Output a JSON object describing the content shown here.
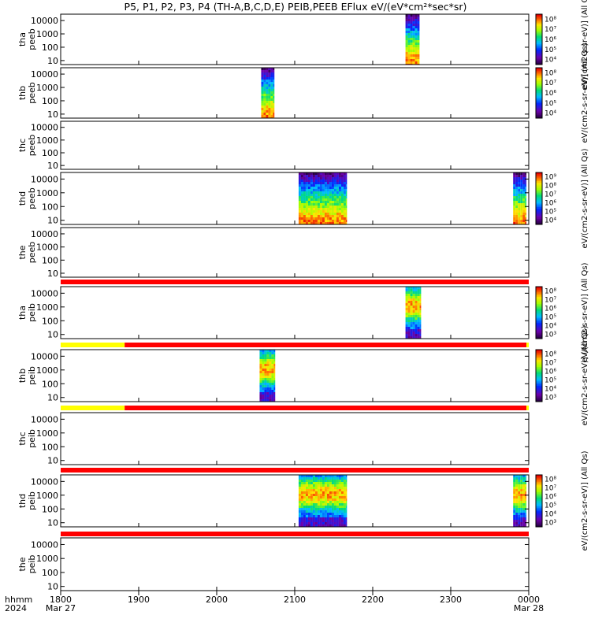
{
  "title": "P5, P1, P2, P3, P4 (TH-A,B,C,D,E) PEIB,PEEB EFlux eV/(eV*cm²*sec*sr)",
  "colors": {
    "flag_red": "#ff0000",
    "flag_yellow": "#ffff00"
  },
  "time_axis": {
    "corner_top": "hhmm",
    "corner_bottom": "2024",
    "ticks": [
      {
        "label": "1800",
        "sub": "Mar 27",
        "hour": 18
      },
      {
        "label": "1900",
        "sub": "",
        "hour": 19
      },
      {
        "label": "2000",
        "sub": "",
        "hour": 20
      },
      {
        "label": "2100",
        "sub": "",
        "hour": 21
      },
      {
        "label": "2200",
        "sub": "",
        "hour": 22
      },
      {
        "label": "2300",
        "sub": "",
        "hour": 23
      },
      {
        "label": "0000",
        "sub": "Mar 28",
        "hour": 24
      }
    ]
  },
  "chart_data": {
    "type": "heatmap",
    "x_range_hours": [
      18,
      24
    ],
    "y_scale": "log",
    "y_ticks": [
      "10",
      "100",
      "1000",
      "10000"
    ],
    "panels": [
      {
        "label1": "tha",
        "label2": "peeb",
        "ylim": [
          5,
          30000
        ],
        "blocks": [
          {
            "x0": 22.42,
            "x1": 22.6,
            "pattern": "electron"
          }
        ],
        "colorbar": {
          "ticks": [
            "10⁴",
            "10⁵",
            "10⁶",
            "10⁷",
            "10⁸"
          ],
          "label": "eV/(cm2-s-sr-eV)] (All Qs)"
        }
      },
      {
        "label1": "thb",
        "label2": "peeb",
        "ylim": [
          5,
          30000
        ],
        "blocks": [
          {
            "x0": 20.57,
            "x1": 20.74,
            "pattern": "electron"
          }
        ],
        "colorbar": {
          "ticks": [
            "10⁴",
            "10⁵",
            "10⁶",
            "10⁷",
            "10⁸"
          ],
          "label": "eV/(cm2-s-sr-eV)] (All Qs)"
        }
      },
      {
        "label1": "thc",
        "label2": "peeb",
        "ylim": [
          5,
          30000
        ],
        "blocks": [],
        "colorbar": null
      },
      {
        "label1": "thd",
        "label2": "peeb",
        "ylim": [
          5,
          30000
        ],
        "blocks": [
          {
            "x0": 21.05,
            "x1": 21.67,
            "pattern": "electron"
          },
          {
            "x0": 23.8,
            "x1": 23.97,
            "pattern": "electron"
          }
        ],
        "colorbar": {
          "ticks": [
            "10⁴",
            "10⁵",
            "10⁶",
            "10⁷",
            "10⁸",
            "10⁹"
          ],
          "label": "eV/(cm2-s-sr-eV)] (All Qs)"
        }
      },
      {
        "label1": "the",
        "label2": "peeb",
        "ylim": [
          5,
          30000
        ],
        "blocks": [],
        "colorbar": null
      },
      {
        "label1": "tha",
        "label2": "peib",
        "ylim": [
          5,
          30000
        ],
        "blocks": [
          {
            "x0": 22.42,
            "x1": 22.62,
            "pattern": "ion"
          }
        ],
        "colorbar": {
          "ticks": [
            "10³",
            "10⁴",
            "10⁵",
            "10⁶",
            "10⁷",
            "10⁸"
          ],
          "label": "eV/(cm2-s-sr-eV)] (All Qs)"
        }
      },
      {
        "label1": "thb",
        "label2": "peib",
        "ylim": [
          5,
          30000
        ],
        "blocks": [
          {
            "x0": 20.55,
            "x1": 20.75,
            "pattern": "ion"
          }
        ],
        "colorbar": {
          "ticks": [
            "10³",
            "10⁴",
            "10⁵",
            "10⁶",
            "10⁷",
            "10⁸"
          ],
          "label": "eV/(cm2-s-sr-eV)] (All Qs)"
        }
      },
      {
        "label1": "thc",
        "label2": "peib",
        "ylim": [
          5,
          30000
        ],
        "blocks": [],
        "colorbar": null
      },
      {
        "label1": "thd",
        "label2": "peib",
        "ylim": [
          5,
          30000
        ],
        "blocks": [
          {
            "x0": 21.05,
            "x1": 21.67,
            "pattern": "ion"
          },
          {
            "x0": 23.8,
            "x1": 23.97,
            "pattern": "ion"
          }
        ],
        "colorbar": {
          "ticks": [
            "10³",
            "10⁴",
            "10⁵",
            "10⁶",
            "10⁷",
            "10⁸"
          ],
          "label": "eV/(cm2-s-sr-eV)] (All Qs)"
        }
      },
      {
        "label1": "the",
        "label2": "peib",
        "ylim": [
          5,
          30000
        ],
        "blocks": [],
        "colorbar": null
      }
    ],
    "flag_bars": [
      {
        "segments": [
          {
            "x0": 18,
            "x1": 24,
            "color": "red"
          }
        ]
      },
      {
        "segments": [
          {
            "x0": 18,
            "x1": 18.82,
            "color": "yellow"
          },
          {
            "x0": 18.82,
            "x1": 23.97,
            "color": "red"
          },
          {
            "x0": 23.97,
            "x1": 24,
            "color": "yellow"
          }
        ]
      },
      {
        "segments": [
          {
            "x0": 18,
            "x1": 18.82,
            "color": "yellow"
          },
          {
            "x0": 18.82,
            "x1": 23.97,
            "color": "red"
          },
          {
            "x0": 23.97,
            "x1": 24,
            "color": "yellow"
          }
        ]
      },
      {
        "segments": [
          {
            "x0": 18,
            "x1": 24,
            "color": "red"
          }
        ]
      },
      {
        "segments": [
          {
            "x0": 18,
            "x1": 24,
            "color": "red"
          }
        ]
      }
    ]
  }
}
